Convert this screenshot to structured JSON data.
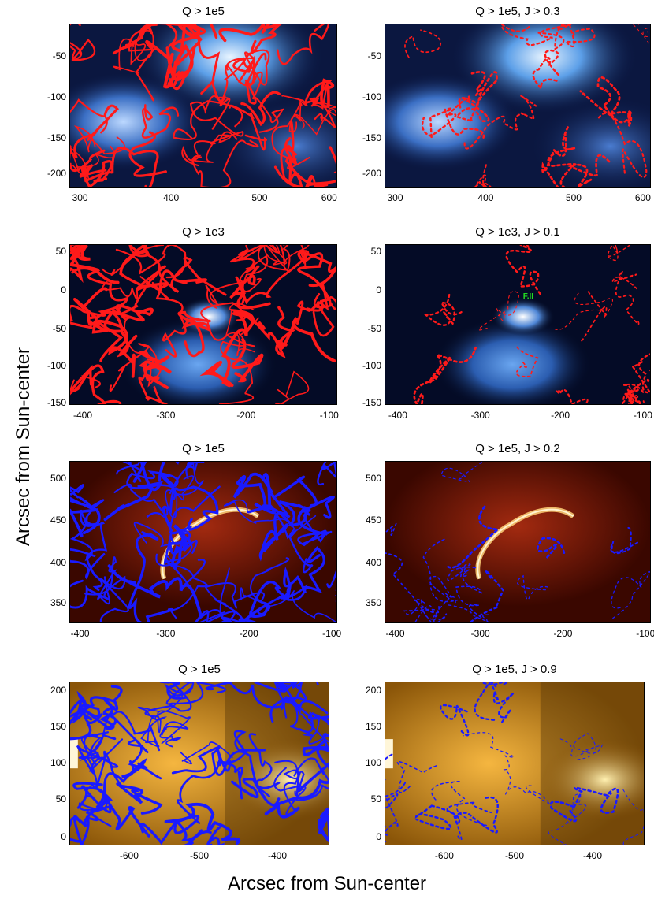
{
  "axis_labels": {
    "y": "Arcsec from Sun-center",
    "x": "Arcsec from Sun-center"
  },
  "panels": [
    {
      "title": "Q > 1e5",
      "style": "blue",
      "contour_color": "#ff1a1a",
      "contour_density": "dense",
      "yticks": [
        "-50",
        "-100",
        "-150",
        "-200"
      ],
      "xticks": [
        "300",
        "400",
        "500",
        "600"
      ]
    },
    {
      "title": "Q > 1e5, J > 0.3",
      "style": "blue",
      "contour_color": "#ff1a1a",
      "contour_density": "sparse",
      "yticks": [
        "-50",
        "-100",
        "-150",
        "-200"
      ],
      "xticks": [
        "300",
        "400",
        "500",
        "600"
      ]
    },
    {
      "title": "Q > 1e3",
      "style": "blue-dark",
      "contour_color": "#ff1a1a",
      "contour_density": "dense",
      "yticks": [
        "50",
        "0",
        "-50",
        "-100",
        "-150"
      ],
      "xticks": [
        "-400",
        "-300",
        "-200",
        "-100"
      ]
    },
    {
      "title": "Q > 1e3, J > 0.1",
      "style": "blue-dark",
      "contour_color": "#ff1a1a",
      "contour_density": "sparse",
      "annotation": "F.II",
      "yticks": [
        "50",
        "0",
        "-50",
        "-100",
        "-150"
      ],
      "xticks": [
        "-400",
        "-300",
        "-200",
        "-100"
      ]
    },
    {
      "title": "Q > 1e5",
      "style": "red",
      "contour_color": "#1a1aff",
      "contour_density": "dense",
      "yticks": [
        "500",
        "450",
        "400",
        "350"
      ],
      "xticks": [
        "-400",
        "-300",
        "-200",
        "-100"
      ]
    },
    {
      "title": "Q > 1e5, J > 0.2",
      "style": "red",
      "contour_color": "#1a1aff",
      "contour_density": "sparse",
      "yticks": [
        "500",
        "450",
        "400",
        "350"
      ],
      "xticks": [
        "-400",
        "-300",
        "-200",
        "-100"
      ]
    },
    {
      "title": "Q > 1e5",
      "style": "gold",
      "contour_color": "#1a1aff",
      "contour_density": "dense",
      "yticks": [
        "200",
        "150",
        "100",
        "50",
        "0"
      ],
      "xticks": [
        "-600",
        "-500",
        "-400"
      ]
    },
    {
      "title": "Q > 1e5, J > 0.9",
      "style": "gold",
      "contour_color": "#1a1aff",
      "contour_density": "sparse",
      "yticks": [
        "200",
        "150",
        "100",
        "50",
        "0"
      ],
      "xticks": [
        "-600",
        "-500",
        "-400"
      ]
    }
  ]
}
